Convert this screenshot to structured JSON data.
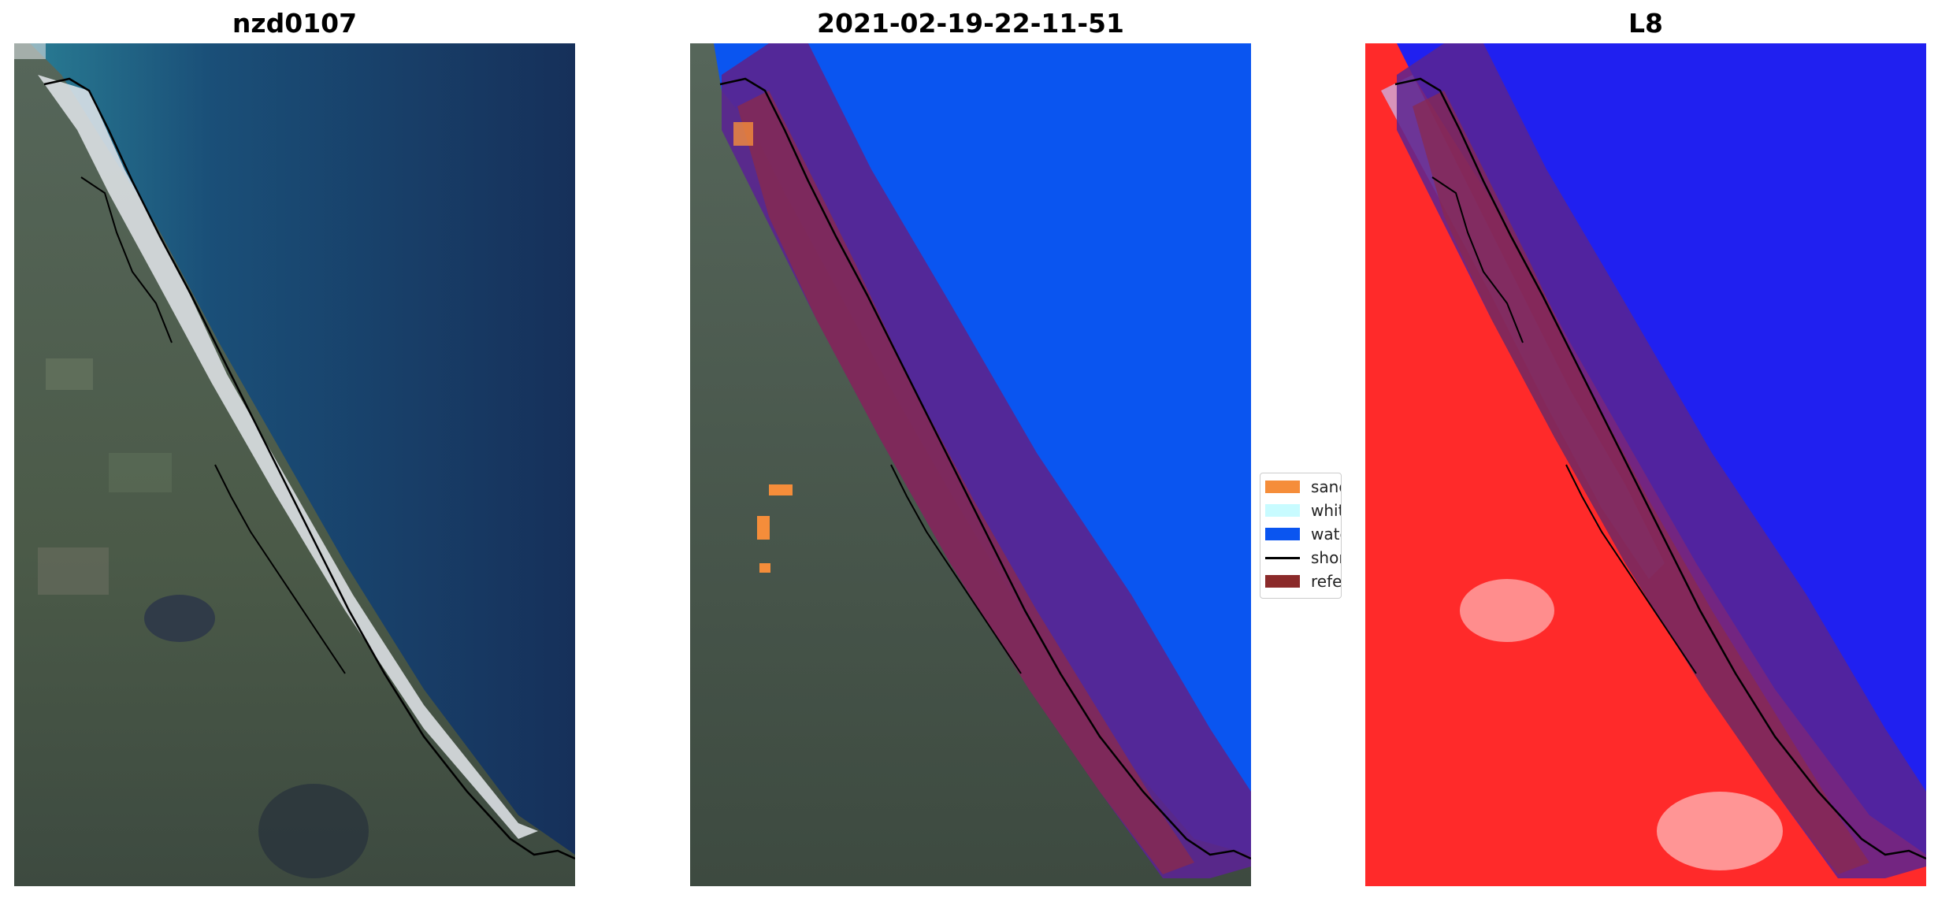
{
  "panels": [
    {
      "title": "nzd0107"
    },
    {
      "title": "2021-02-19-22-11-51"
    },
    {
      "title": "L8"
    }
  ],
  "legend": {
    "items": [
      {
        "label": "sand",
        "color": "#f58d3a",
        "kind": "patch"
      },
      {
        "label": "whitewater",
        "color": "#c8fbff",
        "kind": "patch"
      },
      {
        "label": "water",
        "color": "#0a55f0",
        "kind": "patch"
      },
      {
        "label": "shoreline",
        "color": "#000000",
        "kind": "line"
      },
      {
        "label": "reference",
        "color": "#8b2a2a",
        "kind": "patch"
      }
    ]
  },
  "colors": {
    "ocean_deep": "#16305a",
    "ocean_shallow": "#1e6f8a",
    "beach": "#e4e8ec",
    "land_green": "#4a5a48",
    "classified_water": "#0a55f0",
    "buffer_purple": "#5a2590",
    "index_red": "#ff2a2a",
    "index_blue": "#2020f0"
  }
}
